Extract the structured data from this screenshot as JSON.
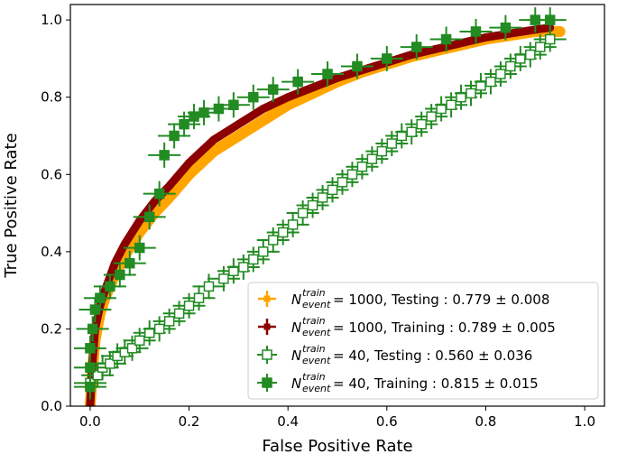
{
  "chart_data": {
    "type": "scatter",
    "title": "",
    "xlabel": "False Positive Rate",
    "ylabel": "True Positive Rate",
    "xlim": [
      -0.04,
      1.04
    ],
    "ylim": [
      0.0,
      1.04
    ],
    "xticks": [
      0.0,
      0.2,
      0.4,
      0.6,
      0.8,
      1.0
    ],
    "yticks": [
      0.0,
      0.2,
      0.4,
      0.6,
      0.8,
      1.0
    ],
    "xtick_labels": [
      "0.0",
      "0.2",
      "0.4",
      "0.6",
      "0.8",
      "1.0"
    ],
    "ytick_labels": [
      "0.0",
      "0.2",
      "0.4",
      "0.6",
      "0.8",
      "1.0"
    ],
    "grid": false,
    "legend_position": "bottom-right",
    "series": [
      {
        "name": "N_event^train = 1000, Testing : 0.779 ± 0.008",
        "legend_symbol": "N",
        "legend_sup": "train",
        "legend_sub": "event",
        "legend_rest": " = 1000, Testing : 0.779 ± 0.008",
        "color": "#ffa500",
        "marker": "band",
        "x": [
          0.0,
          0.005,
          0.01,
          0.02,
          0.03,
          0.05,
          0.07,
          0.1,
          0.13,
          0.16,
          0.2,
          0.25,
          0.3,
          0.35,
          0.4,
          0.45,
          0.5,
          0.55,
          0.6,
          0.65,
          0.7,
          0.75,
          0.8,
          0.85,
          0.9,
          0.95
        ],
        "y": [
          0.0,
          0.1,
          0.17,
          0.24,
          0.28,
          0.34,
          0.39,
          0.45,
          0.5,
          0.54,
          0.6,
          0.66,
          0.7,
          0.74,
          0.78,
          0.81,
          0.84,
          0.865,
          0.885,
          0.905,
          0.92,
          0.935,
          0.95,
          0.96,
          0.97,
          0.97
        ]
      },
      {
        "name": "N_event^train = 1000, Training : 0.789 ± 0.005",
        "legend_symbol": "N",
        "legend_sup": "train",
        "legend_sub": "event",
        "legend_rest": " = 1000, Training : 0.789 ± 0.005",
        "color": "#8b0000",
        "marker": "band",
        "x": [
          0.0,
          0.005,
          0.01,
          0.02,
          0.03,
          0.05,
          0.07,
          0.1,
          0.13,
          0.16,
          0.2,
          0.25,
          0.3,
          0.35,
          0.4,
          0.45,
          0.5,
          0.55,
          0.6,
          0.65,
          0.7,
          0.75,
          0.8,
          0.85,
          0.9,
          0.93
        ],
        "y": [
          0.0,
          0.12,
          0.2,
          0.26,
          0.3,
          0.37,
          0.42,
          0.48,
          0.53,
          0.57,
          0.63,
          0.69,
          0.73,
          0.77,
          0.8,
          0.825,
          0.85,
          0.87,
          0.89,
          0.91,
          0.925,
          0.94,
          0.955,
          0.965,
          0.975,
          0.98
        ]
      },
      {
        "name": "N_event^train = 40, Testing : 0.560 ± 0.036",
        "legend_symbol": "N",
        "legend_sup": "train",
        "legend_sub": "event",
        "legend_rest": " = 40, Testing : 0.560 ± 0.036",
        "color": "#228b22",
        "marker": "open-square",
        "x": [
          0.0,
          0.015,
          0.025,
          0.04,
          0.055,
          0.07,
          0.085,
          0.1,
          0.12,
          0.14,
          0.16,
          0.18,
          0.2,
          0.22,
          0.24,
          0.27,
          0.29,
          0.31,
          0.33,
          0.35,
          0.37,
          0.39,
          0.41,
          0.43,
          0.45,
          0.47,
          0.49,
          0.51,
          0.53,
          0.55,
          0.57,
          0.59,
          0.61,
          0.63,
          0.65,
          0.67,
          0.69,
          0.71,
          0.73,
          0.75,
          0.77,
          0.79,
          0.81,
          0.83,
          0.85,
          0.87,
          0.89,
          0.91,
          0.93
        ],
        "y": [
          0.06,
          0.08,
          0.1,
          0.11,
          0.13,
          0.14,
          0.15,
          0.17,
          0.19,
          0.2,
          0.22,
          0.24,
          0.26,
          0.28,
          0.31,
          0.33,
          0.35,
          0.36,
          0.38,
          0.4,
          0.43,
          0.45,
          0.47,
          0.5,
          0.52,
          0.54,
          0.56,
          0.58,
          0.6,
          0.62,
          0.64,
          0.66,
          0.68,
          0.7,
          0.71,
          0.73,
          0.75,
          0.77,
          0.78,
          0.8,
          0.81,
          0.83,
          0.84,
          0.86,
          0.88,
          0.9,
          0.91,
          0.93,
          0.95
        ]
      },
      {
        "name": "N_event^train = 40, Training : 0.815 ± 0.015",
        "legend_symbol": "N",
        "legend_sup": "train",
        "legend_sub": "event",
        "legend_rest": " = 40, Training : 0.815 ± 0.015",
        "color": "#228b22",
        "marker": "filled-square",
        "x": [
          0.0,
          0.0,
          0.0,
          0.005,
          0.01,
          0.02,
          0.04,
          0.06,
          0.08,
          0.1,
          0.12,
          0.14,
          0.15,
          0.17,
          0.19,
          0.21,
          0.23,
          0.26,
          0.29,
          0.33,
          0.37,
          0.42,
          0.48,
          0.54,
          0.6,
          0.66,
          0.72,
          0.78,
          0.84,
          0.9,
          0.93
        ],
        "y": [
          0.05,
          0.1,
          0.15,
          0.2,
          0.25,
          0.28,
          0.31,
          0.34,
          0.37,
          0.41,
          0.49,
          0.55,
          0.65,
          0.7,
          0.73,
          0.75,
          0.76,
          0.77,
          0.78,
          0.8,
          0.82,
          0.84,
          0.86,
          0.88,
          0.9,
          0.93,
          0.95,
          0.97,
          0.98,
          1.0,
          1.0
        ]
      }
    ]
  }
}
